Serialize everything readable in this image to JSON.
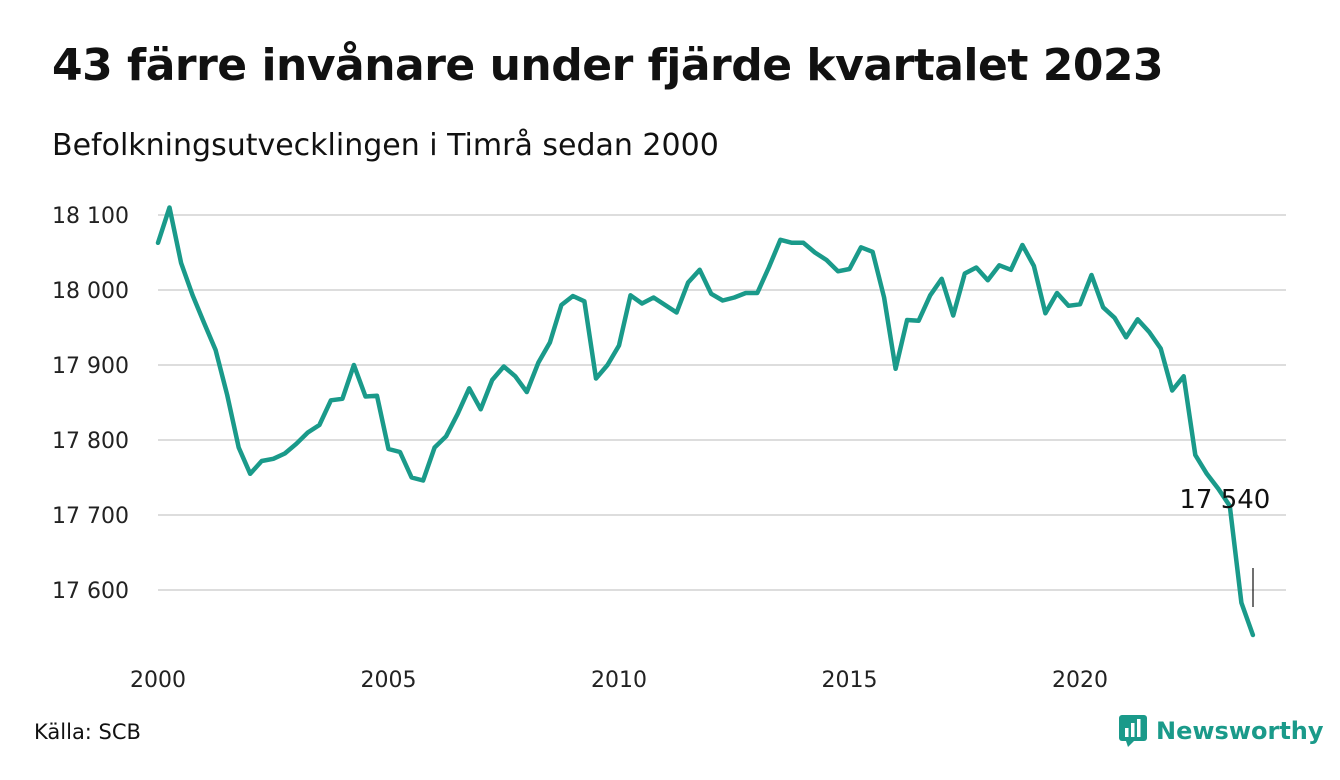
{
  "header": {
    "title": "43 färre invånare under fjärde kvartalet 2023",
    "subtitle": "Befolkningsutvecklingen i Timrå sedan 2000"
  },
  "footer": {
    "source": "Källa: SCB",
    "brand": "Newsworthy"
  },
  "colors": {
    "line": "#1a9a8a",
    "grid": "#dddddd",
    "brand": "#1a9a8a"
  },
  "chart_data": {
    "type": "line",
    "title": "43 färre invånare under fjärde kvartalet 2023",
    "subtitle": "Befolkningsutvecklingen i Timrå sedan 2000",
    "xlabel": "",
    "ylabel": "",
    "x_tick_labels": [
      "2000",
      "2005",
      "2010",
      "2015",
      "2020"
    ],
    "y_ticks": [
      17600,
      17700,
      17800,
      17900,
      18000,
      18100
    ],
    "y_tick_labels": [
      "17 600",
      "17 700",
      "17 800",
      "17 900",
      "18 000",
      "18 100"
    ],
    "ylim": [
      17520,
      18110
    ],
    "grid": true,
    "x_start": "2000-Q1",
    "frequency": "quarterly",
    "series": [
      {
        "values": [
          18063,
          18110,
          18036,
          17993,
          17956,
          17920,
          17860,
          17790,
          17755,
          17772,
          17775,
          17782,
          17795,
          17810,
          17820,
          17853,
          17855,
          17900,
          17858,
          17859,
          17788,
          17784,
          17750,
          17746,
          17790,
          17805,
          17835,
          17869,
          17841,
          17880,
          17898,
          17885,
          17864,
          17903,
          17930,
          17980,
          17992,
          17985,
          17882,
          17900,
          17926,
          17993,
          17982,
          17990,
          17980,
          17970,
          18010,
          18027,
          17995,
          17986,
          17990,
          17996,
          17996,
          18030,
          18067,
          18063,
          18063,
          18050,
          18040,
          18025,
          18028,
          18057,
          18051,
          17990,
          17895,
          17960,
          17959,
          17993,
          18015,
          17966,
          18022,
          18030,
          18013,
          18033,
          18027,
          18060,
          18032,
          17969,
          17996,
          17979,
          17981,
          18020,
          17977,
          17963,
          17937,
          17961,
          17944,
          17922,
          17866,
          17885,
          17780,
          17755,
          17735,
          17712,
          17583,
          17540
        ]
      }
    ],
    "annotations": [
      {
        "text": "17 540",
        "x": "2023-Q4",
        "y": 17540
      }
    ]
  }
}
